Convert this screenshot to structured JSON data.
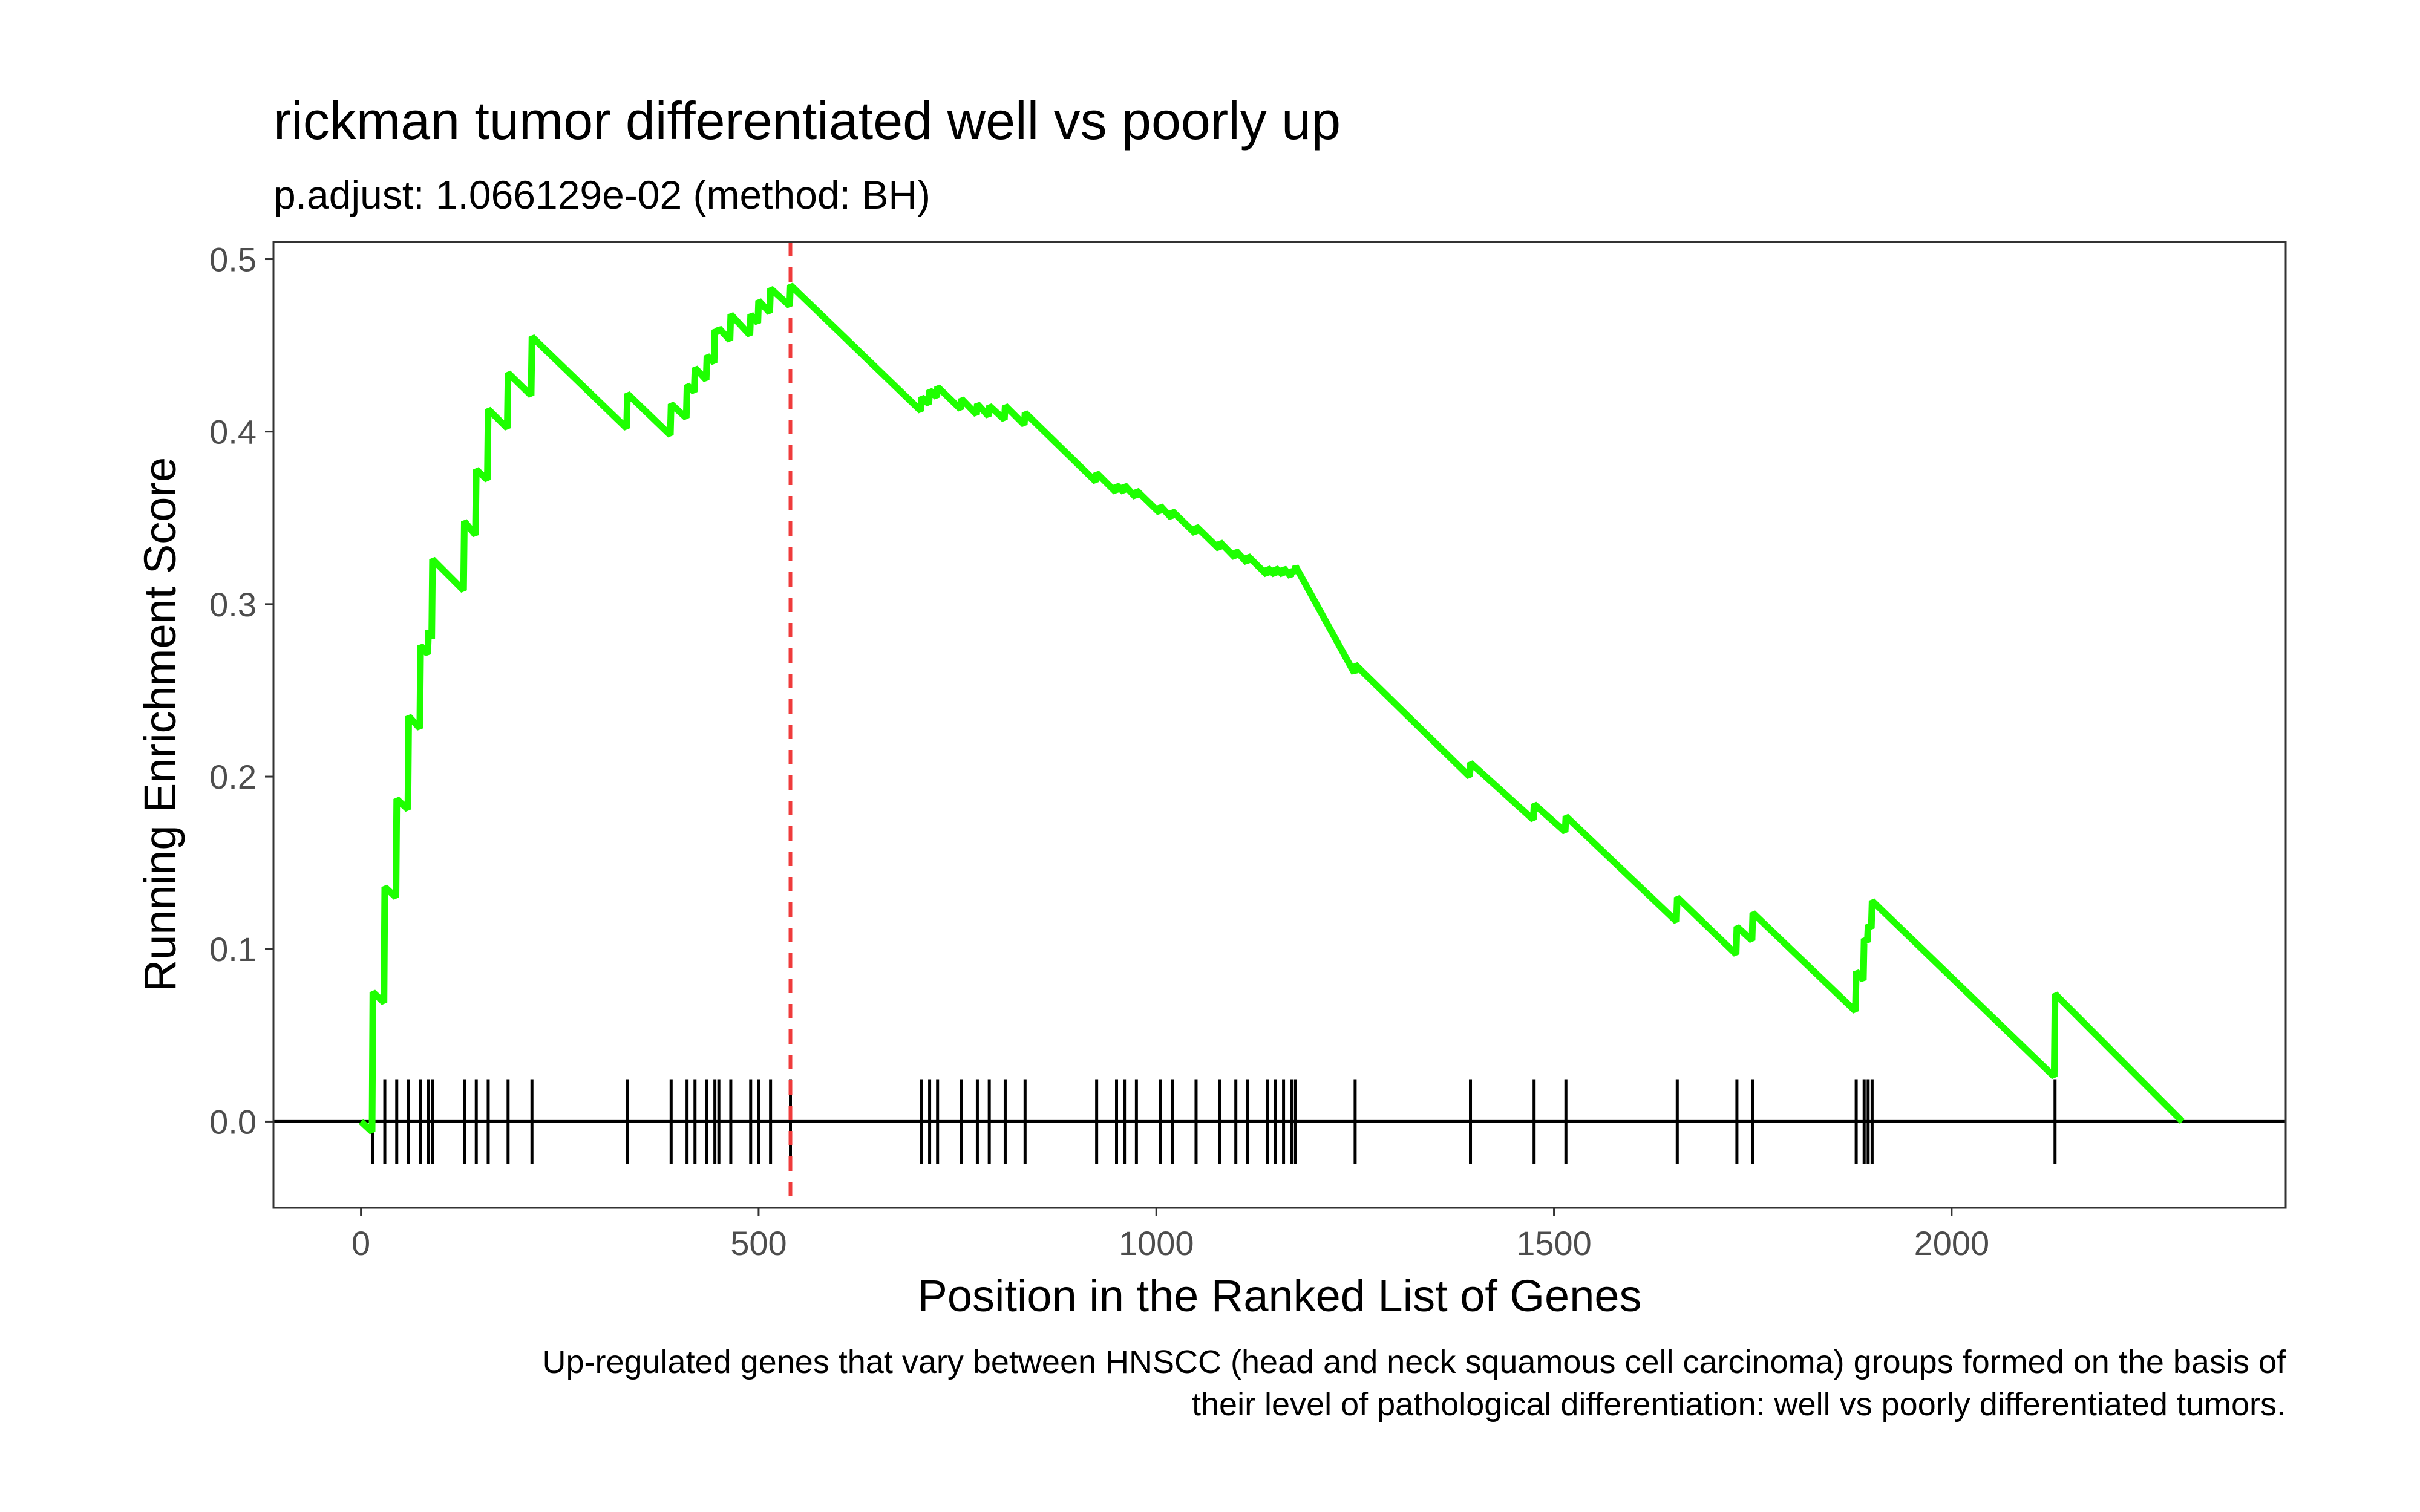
{
  "chart_data": {
    "type": "line",
    "title": "rickman tumor differentiated well vs poorly up",
    "subtitle": "p.adjust: 1.066129e-02 (method: BH)",
    "xlabel": "Position in the Ranked List of Genes",
    "ylabel": "Running Enrichment Score",
    "caption": [
      "Up-regulated genes that vary between HNSCC (head and neck squamous cell carcinoma) groups formed on the basis of",
      "their level of pathological differentiation: well vs poorly differentiated tumors."
    ],
    "xlim": [
      -110,
      2420
    ],
    "ylim": [
      -0.05,
      0.51
    ],
    "x_ticks": [
      0,
      500,
      1000,
      1500,
      2000
    ],
    "x_tick_labels": [
      "0",
      "500",
      "1000",
      "1500",
      "2000"
    ],
    "y_ticks": [
      0.0,
      0.1,
      0.2,
      0.3,
      0.4,
      0.5
    ],
    "y_tick_labels": [
      "0.0",
      "0.1",
      "0.2",
      "0.3",
      "0.4",
      "0.5"
    ],
    "grid": false,
    "line_color": "#1eff00",
    "vline_color": "#ef3b3b",
    "max_position": 540,
    "n_genes": 2290,
    "hits": [
      15,
      30,
      45,
      60,
      75,
      85,
      90,
      130,
      145,
      160,
      185,
      215,
      335,
      390,
      410,
      420,
      435,
      445,
      450,
      465,
      490,
      500,
      515,
      540,
      705,
      715,
      725,
      755,
      775,
      790,
      810,
      835,
      925,
      950,
      960,
      975,
      1005,
      1020,
      1050,
      1080,
      1100,
      1115,
      1140,
      1150,
      1160,
      1170,
      1175,
      1250,
      1395,
      1475,
      1515,
      1655,
      1730,
      1750,
      1880,
      1890,
      1895,
      1900,
      2130
    ],
    "line_points": [
      [
        0,
        0
      ],
      [
        14,
        -0.006
      ],
      [
        15,
        0.075
      ],
      [
        29,
        0.069
      ],
      [
        30,
        0.136
      ],
      [
        44,
        0.13
      ],
      [
        45,
        0.187
      ],
      [
        59,
        0.181
      ],
      [
        60,
        0.235
      ],
      [
        74,
        0.228
      ],
      [
        75,
        0.276
      ],
      [
        84,
        0.271
      ],
      [
        85,
        0.285
      ],
      [
        89,
        0.28
      ],
      [
        90,
        0.326
      ],
      [
        129,
        0.308
      ],
      [
        130,
        0.348
      ],
      [
        144,
        0.34
      ],
      [
        145,
        0.378
      ],
      [
        159,
        0.372
      ],
      [
        160,
        0.413
      ],
      [
        184,
        0.402
      ],
      [
        185,
        0.434
      ],
      [
        214,
        0.421
      ],
      [
        215,
        0.455
      ],
      [
        334,
        0.402
      ],
      [
        335,
        0.422
      ],
      [
        389,
        0.398
      ],
      [
        390,
        0.416
      ],
      [
        409,
        0.408
      ],
      [
        410,
        0.427
      ],
      [
        419,
        0.423
      ],
      [
        420,
        0.437
      ],
      [
        434,
        0.43
      ],
      [
        435,
        0.444
      ],
      [
        444,
        0.44
      ],
      [
        445,
        0.459
      ],
      [
        449,
        0.457
      ],
      [
        450,
        0.46
      ],
      [
        464,
        0.453
      ],
      [
        465,
        0.468
      ],
      [
        489,
        0.456
      ],
      [
        490,
        0.468
      ],
      [
        499,
        0.463
      ],
      [
        500,
        0.476
      ],
      [
        514,
        0.469
      ],
      [
        515,
        0.483
      ],
      [
        539,
        0.473
      ],
      [
        540,
        0.485
      ],
      [
        704,
        0.412
      ],
      [
        705,
        0.42
      ],
      [
        714,
        0.416
      ],
      [
        715,
        0.424
      ],
      [
        724,
        0.42
      ],
      [
        725,
        0.426
      ],
      [
        754,
        0.413
      ],
      [
        755,
        0.419
      ],
      [
        774,
        0.41
      ],
      [
        775,
        0.416
      ],
      [
        789,
        0.409
      ],
      [
        790,
        0.415
      ],
      [
        809,
        0.407
      ],
      [
        810,
        0.415
      ],
      [
        834,
        0.404
      ],
      [
        835,
        0.411
      ],
      [
        924,
        0.371
      ],
      [
        925,
        0.376
      ],
      [
        949,
        0.365
      ],
      [
        950,
        0.369
      ],
      [
        959,
        0.365
      ],
      [
        960,
        0.369
      ],
      [
        974,
        0.362
      ],
      [
        975,
        0.366
      ],
      [
        1004,
        0.353
      ],
      [
        1005,
        0.357
      ],
      [
        1019,
        0.35
      ],
      [
        1020,
        0.354
      ],
      [
        1049,
        0.341
      ],
      [
        1050,
        0.345
      ],
      [
        1079,
        0.332
      ],
      [
        1080,
        0.336
      ],
      [
        1099,
        0.327
      ],
      [
        1100,
        0.331
      ],
      [
        1114,
        0.324
      ],
      [
        1115,
        0.328
      ],
      [
        1139,
        0.317
      ],
      [
        1140,
        0.321
      ],
      [
        1149,
        0.317
      ],
      [
        1150,
        0.321
      ],
      [
        1159,
        0.317
      ],
      [
        1160,
        0.321
      ],
      [
        1169,
        0.316
      ],
      [
        1170,
        0.32
      ],
      [
        1174,
        0.318
      ],
      [
        1175,
        0.322
      ],
      [
        1249,
        0.26
      ],
      [
        1250,
        0.265
      ],
      [
        1394,
        0.2
      ],
      [
        1395,
        0.208
      ],
      [
        1474,
        0.175
      ],
      [
        1475,
        0.184
      ],
      [
        1514,
        0.168
      ],
      [
        1515,
        0.177
      ],
      [
        1654,
        0.116
      ],
      [
        1655,
        0.13
      ],
      [
        1729,
        0.097
      ],
      [
        1730,
        0.113
      ],
      [
        1749,
        0.105
      ],
      [
        1750,
        0.121
      ],
      [
        1879,
        0.064
      ],
      [
        1880,
        0.087
      ],
      [
        1889,
        0.082
      ],
      [
        1890,
        0.106
      ],
      [
        1894,
        0.104
      ],
      [
        1895,
        0.114
      ],
      [
        1899,
        0.112
      ],
      [
        1900,
        0.128
      ],
      [
        2129,
        0.026
      ],
      [
        2130,
        0.074
      ],
      [
        2290,
        0
      ]
    ]
  }
}
